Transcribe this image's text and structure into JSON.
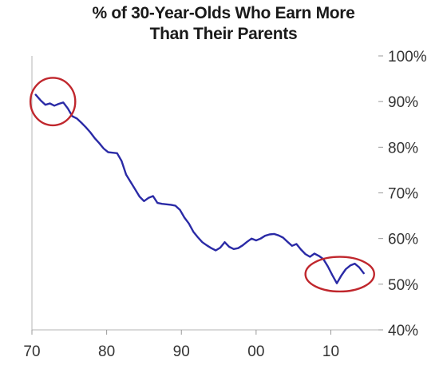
{
  "chart_data": {
    "type": "line",
    "title_lines": [
      "% of 30-Year-Olds Who Earn More",
      "Than Their Parents"
    ],
    "xlabel": "",
    "ylabel": "",
    "x_tick_labels": [
      "70",
      "80",
      "90",
      "00",
      "10"
    ],
    "x_ticks": [
      1970,
      1980,
      1990,
      2000,
      2010
    ],
    "xlim": [
      1970,
      2017
    ],
    "y_tick_labels": [
      "40%",
      "50%",
      "60%",
      "70%",
      "80%",
      "90%",
      "100%"
    ],
    "y_ticks": [
      40,
      50,
      60,
      70,
      80,
      90,
      100
    ],
    "ylim": [
      40,
      100
    ],
    "y_axis_position": "right",
    "grid": false,
    "line_color": "#2a2aa6",
    "highlight_color": "#c0272d",
    "series": [
      {
        "x": [
          1970.5,
          1971.2,
          1971.8,
          1972.4,
          1973.0,
          1973.6,
          1974.2,
          1974.8,
          1975.4,
          1976.0,
          1976.6,
          1977.2,
          1977.8,
          1978.4,
          1979.0,
          1979.6,
          1980.2,
          1980.8,
          1981.4,
          1982.0,
          1982.6,
          1983.2,
          1983.8,
          1984.4,
          1985.0,
          1985.6,
          1986.2,
          1986.8,
          1987.4,
          1988.0,
          1988.6,
          1989.2,
          1989.8,
          1990.4,
          1991.0,
          1991.6,
          1992.2,
          1992.8,
          1993.4,
          1994.0,
          1994.6,
          1995.2,
          1995.8,
          1996.4,
          1997.0,
          1997.6,
          1998.2,
          1998.8,
          1999.4,
          2000.0,
          2000.6,
          2001.2,
          2001.8,
          2002.4,
          2003.0,
          2003.6,
          2004.2,
          2004.8,
          2005.4,
          2006.0,
          2006.6,
          2007.2,
          2007.8,
          2008.4,
          2009.0,
          2009.6,
          2010.2,
          2010.8,
          2011.4,
          2012.0,
          2012.6,
          2013.2,
          2013.8,
          2014.4
        ],
        "values": [
          91.5,
          90.2,
          89.3,
          89.6,
          89.1,
          89.5,
          89.8,
          88.5,
          86.8,
          86.3,
          85.4,
          84.4,
          83.3,
          82.0,
          80.9,
          79.7,
          78.9,
          78.8,
          78.7,
          77.0,
          74.0,
          72.4,
          70.8,
          69.2,
          68.2,
          68.9,
          69.3,
          67.8,
          67.6,
          67.5,
          67.4,
          67.2,
          66.3,
          64.6,
          63.3,
          61.5,
          60.3,
          59.2,
          58.5,
          57.9,
          57.4,
          58.0,
          59.2,
          58.2,
          57.7,
          57.9,
          58.5,
          59.3,
          60.0,
          59.6,
          60.0,
          60.6,
          60.9,
          61.0,
          60.7,
          60.2,
          59.3,
          58.4,
          58.8,
          57.6,
          56.6,
          56.0,
          56.7,
          56.2,
          55.5,
          53.9,
          52.0,
          50.2,
          51.9,
          53.3,
          54.1,
          54.5,
          53.7,
          52.4
        ]
      }
    ],
    "annotations": [
      {
        "type": "ellipse",
        "label": "early-period circle",
        "cx": 1972.8,
        "cy": 90.0,
        "rx": 3.0,
        "ry": 5.2
      },
      {
        "type": "ellipse",
        "label": "recent-period circle",
        "cx": 2011.2,
        "cy": 52.2,
        "rx": 4.6,
        "ry": 3.8
      }
    ]
  }
}
